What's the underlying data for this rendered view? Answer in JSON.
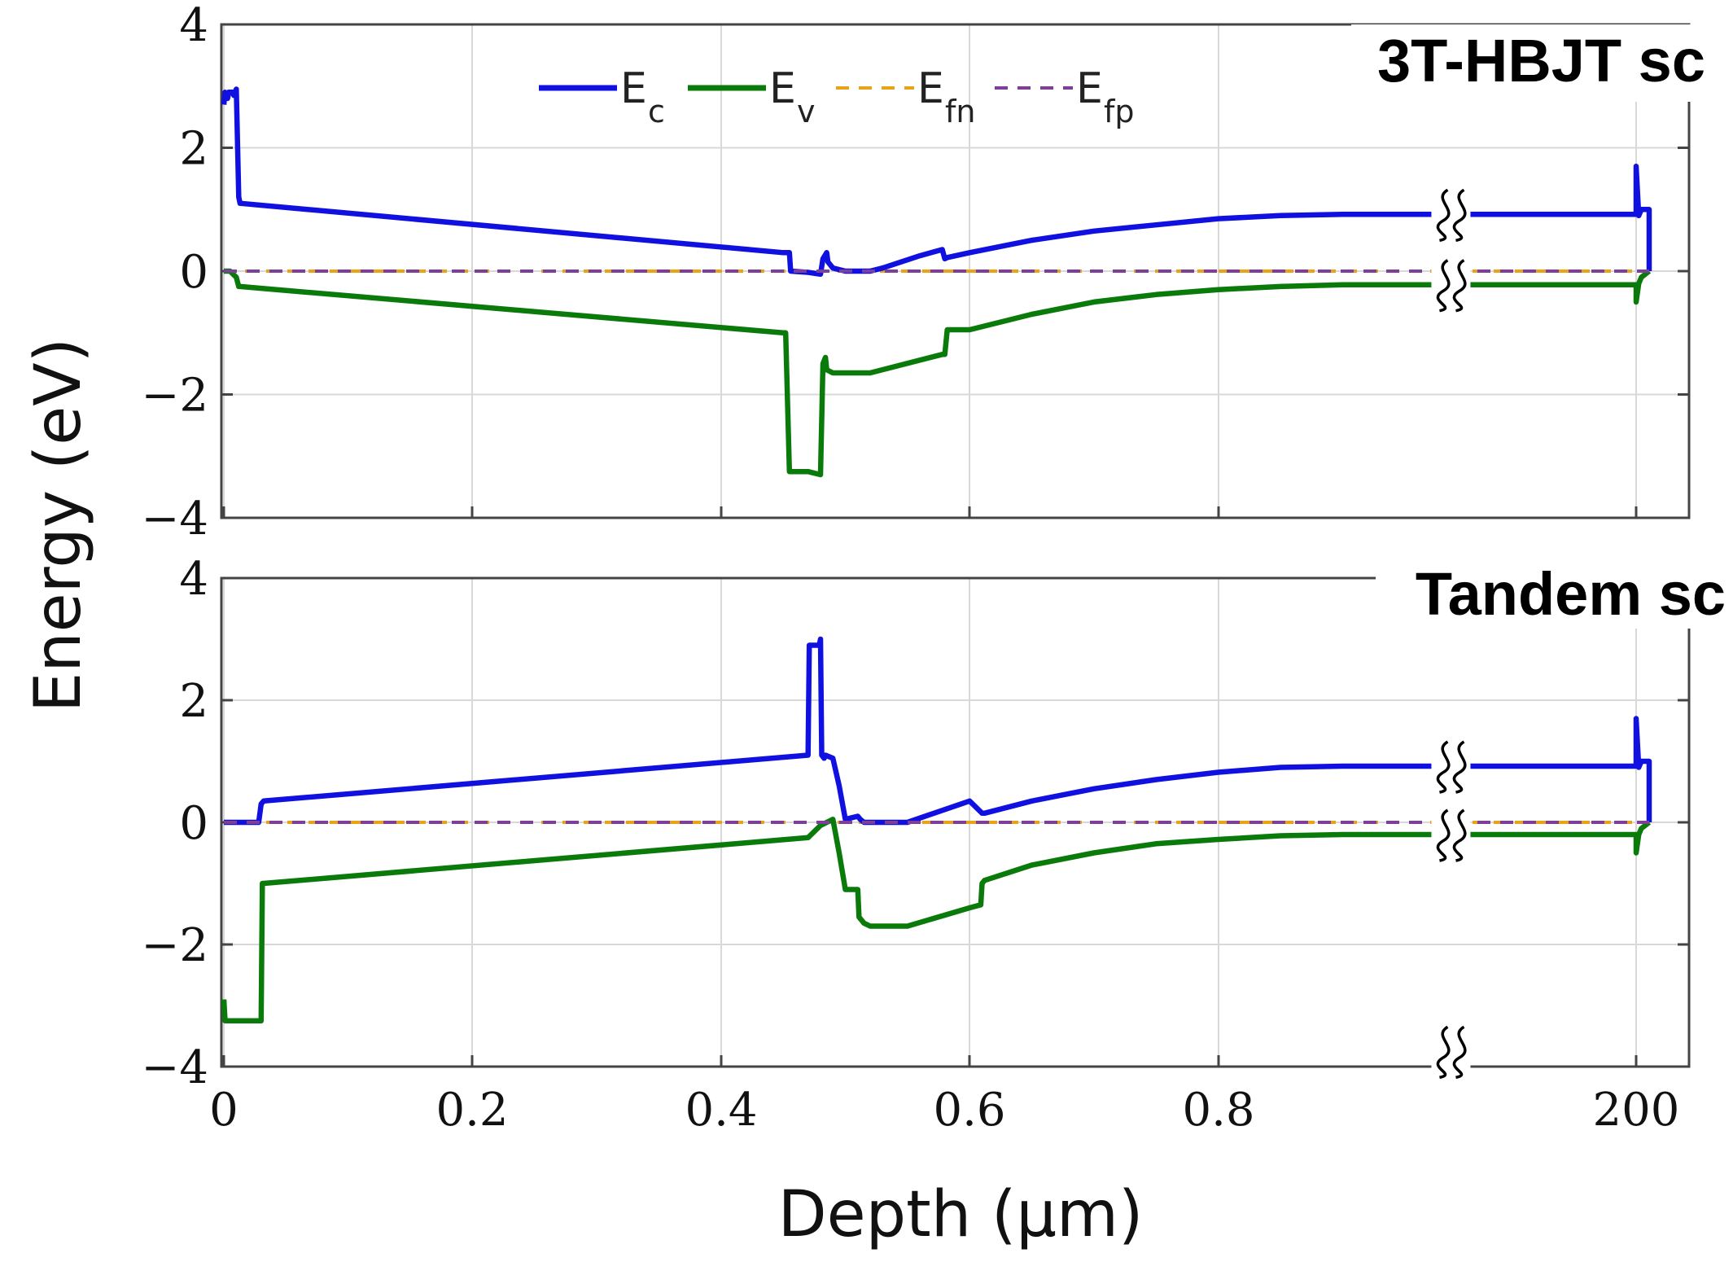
{
  "chart_data": [
    {
      "type": "line",
      "title": "3T-HBJT sc",
      "xlabel": "Depth (µm)",
      "ylabel": "Energy (eV)",
      "ylim": [
        -4,
        4
      ],
      "yticks": [
        "4",
        "2",
        "0",
        "−2",
        "−4"
      ],
      "xticks": [
        "0",
        "0.2",
        "0.4",
        "0.6",
        "0.8",
        "200"
      ],
      "grid": true,
      "legend": {
        "placement": "top-center",
        "entries": [
          {
            "base": "E",
            "sub": "c",
            "color": "#1010e0",
            "style": "solid"
          },
          {
            "base": "E",
            "sub": "v",
            "color": "#0a7a0a",
            "style": "solid"
          },
          {
            "base": "E",
            "sub": "fn",
            "color": "#e8a317",
            "style": "dashed"
          },
          {
            "base": "E",
            "sub": "fp",
            "color": "#7e3f98",
            "style": "dashed"
          }
        ]
      },
      "axis_break_near": 0.98,
      "series": [
        {
          "name": "Ec",
          "color": "#1010e0",
          "x": [
            0,
            0.001,
            0.003,
            0.004,
            0.007,
            0.008,
            0.01,
            0.012,
            0.013,
            0.45,
            0.455,
            0.456,
            0.47,
            0.48,
            0.482,
            0.485,
            0.486,
            0.49,
            0.5,
            0.51,
            0.52,
            0.53,
            0.56,
            0.578,
            0.58,
            0.582,
            0.6,
            0.65,
            0.7,
            0.75,
            0.8,
            0.85,
            0.9,
            0.95,
            1.15,
            1.2,
            1.2,
            1.201,
            1.202,
            1.205,
            1.205
          ],
          "y": [
            2.7,
            2.9,
            2.8,
            2.9,
            2.9,
            2.85,
            2.95,
            1.2,
            1.1,
            0.3,
            0.3,
            0.0,
            -0.02,
            -0.05,
            0.2,
            0.3,
            0.15,
            0.05,
            0.0,
            0.0,
            0.0,
            0.05,
            0.25,
            0.35,
            0.2,
            0.22,
            0.3,
            0.5,
            0.65,
            0.75,
            0.85,
            0.9,
            0.92,
            0.92,
            0.92,
            0.92,
            1.7,
            0.9,
            1.0,
            1.0,
            0.0
          ]
        },
        {
          "name": "Ev",
          "color": "#0a7a0a",
          "x": [
            0,
            0.005,
            0.01,
            0.012,
            0.013,
            0.45,
            0.452,
            0.455,
            0.47,
            0.48,
            0.482,
            0.484,
            0.485,
            0.49,
            0.5,
            0.52,
            0.578,
            0.58,
            0.582,
            0.6,
            0.65,
            0.7,
            0.75,
            0.8,
            0.85,
            0.9,
            0.95,
            1.15,
            1.2,
            1.2,
            1.201,
            1.202,
            1.205
          ],
          "y": [
            0.0,
            0.0,
            -0.1,
            -0.25,
            -0.25,
            -1.0,
            -1.0,
            -3.25,
            -3.25,
            -3.3,
            -1.5,
            -1.4,
            -1.6,
            -1.65,
            -1.65,
            -1.65,
            -1.35,
            -1.35,
            -0.95,
            -0.95,
            -0.7,
            -0.5,
            -0.38,
            -0.3,
            -0.25,
            -0.22,
            -0.22,
            -0.22,
            -0.22,
            -0.5,
            -0.2,
            -0.1,
            0.0
          ]
        },
        {
          "name": "Efn",
          "color": "#e8a317",
          "x": [
            0,
            1.205
          ],
          "y": [
            0.0,
            0.0
          ]
        },
        {
          "name": "Efp",
          "color": "#7e3f98",
          "x": [
            0,
            1.205
          ],
          "y": [
            0.0,
            0.0
          ]
        }
      ]
    },
    {
      "type": "line",
      "title": "Tandem sc",
      "xlabel": "Depth (µm)",
      "ylabel": "Energy (eV)",
      "ylim": [
        -4,
        4
      ],
      "yticks": [
        "4",
        "2",
        "0",
        "−2",
        "−4"
      ],
      "xticks": [
        "0",
        "0.2",
        "0.4",
        "0.6",
        "0.8",
        "200"
      ],
      "grid": true,
      "axis_break_near": 0.98,
      "series": [
        {
          "name": "Ec",
          "color": "#1010e0",
          "x": [
            0,
            0.028,
            0.03,
            0.032,
            0.47,
            0.471,
            0.479,
            0.48,
            0.481,
            0.483,
            0.484,
            0.49,
            0.495,
            0.5,
            0.51,
            0.512,
            0.515,
            0.52,
            0.55,
            0.6,
            0.61,
            0.612,
            0.65,
            0.7,
            0.75,
            0.8,
            0.85,
            0.9,
            1.15,
            1.2,
            1.2,
            1.201,
            1.202,
            1.205,
            1.205
          ],
          "y": [
            0.0,
            0.0,
            0.3,
            0.35,
            1.1,
            2.9,
            2.9,
            3.0,
            1.1,
            1.05,
            1.1,
            1.05,
            0.6,
            0.05,
            0.1,
            0.05,
            0.0,
            0.0,
            0.0,
            0.35,
            0.15,
            0.15,
            0.35,
            0.55,
            0.7,
            0.82,
            0.9,
            0.92,
            0.92,
            0.92,
            1.7,
            0.9,
            1.0,
            1.0,
            0.0
          ]
        },
        {
          "name": "Ev",
          "color": "#0a7a0a",
          "x": [
            0,
            0.001,
            0.03,
            0.031,
            0.032,
            0.47,
            0.48,
            0.49,
            0.495,
            0.5,
            0.51,
            0.511,
            0.515,
            0.52,
            0.55,
            0.6,
            0.609,
            0.61,
            0.612,
            0.65,
            0.7,
            0.75,
            0.8,
            0.85,
            0.9,
            1.15,
            1.2,
            1.2,
            1.201,
            1.202,
            1.205
          ],
          "y": [
            -2.9,
            -3.25,
            -3.25,
            -1.0,
            -1.0,
            -0.25,
            -0.05,
            0.05,
            -0.5,
            -1.1,
            -1.1,
            -1.55,
            -1.65,
            -1.7,
            -1.7,
            -1.4,
            -1.35,
            -1.0,
            -0.95,
            -0.7,
            -0.5,
            -0.35,
            -0.28,
            -0.22,
            -0.2,
            -0.2,
            -0.2,
            -0.5,
            -0.2,
            -0.1,
            0.0
          ]
        },
        {
          "name": "Efn",
          "color": "#e8a317",
          "x": [
            0,
            1.205
          ],
          "y": [
            0.0,
            0.0
          ]
        },
        {
          "name": "Efp",
          "color": "#7e3f98",
          "x": [
            0,
            1.205
          ],
          "y": [
            0.0,
            0.0
          ]
        }
      ]
    }
  ]
}
